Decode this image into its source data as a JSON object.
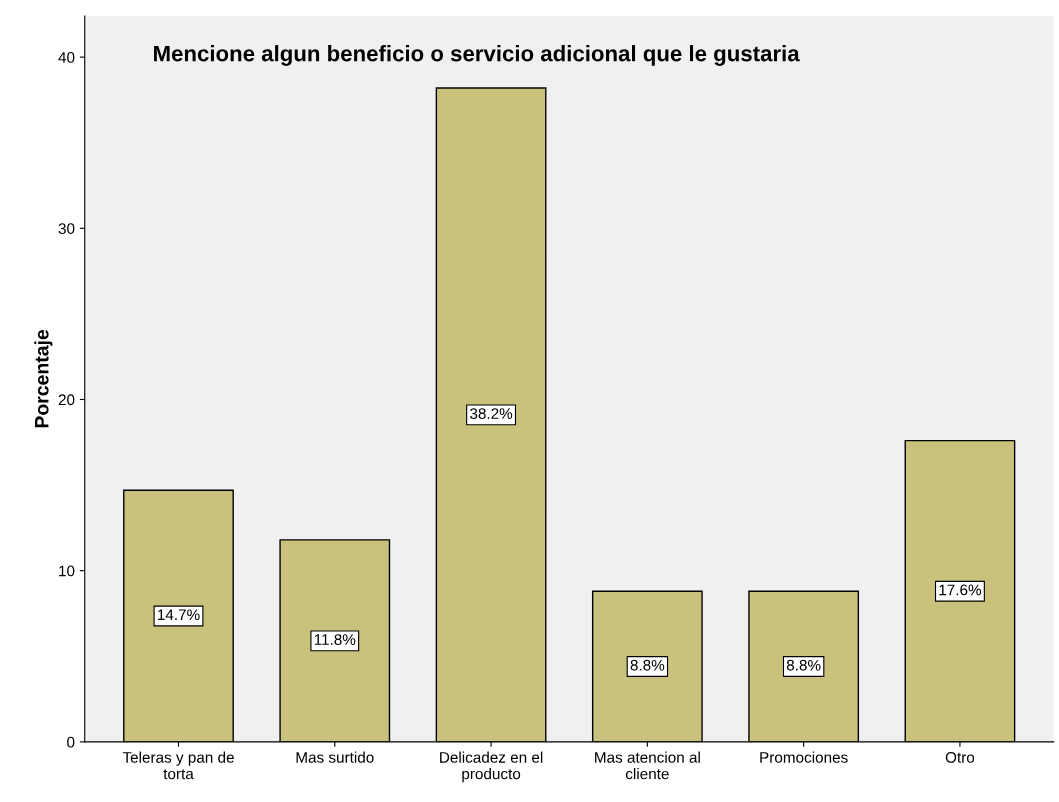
{
  "chart_data": {
    "type": "bar",
    "title": "Mencione algun beneficio o servicio adicional que le gustaria",
    "ylabel": "Porcentaje",
    "categories": [
      "Teleras y pan de\ntorta",
      "Mas surtido",
      "Delicadez en el\nproducto",
      "Mas atencion al\ncliente",
      "Promociones",
      "Otro"
    ],
    "values": [
      14.7,
      11.8,
      38.2,
      8.8,
      8.8,
      17.6
    ],
    "value_labels": [
      "14.7%",
      "11.8%",
      "38.2%",
      "8.8%",
      "8.8%",
      "17.6%"
    ],
    "color": "#c9c27c",
    "ylim": [
      0,
      42.4
    ],
    "yticks": [
      0,
      10,
      20,
      30,
      40
    ],
    "grid": false,
    "legend": false
  }
}
